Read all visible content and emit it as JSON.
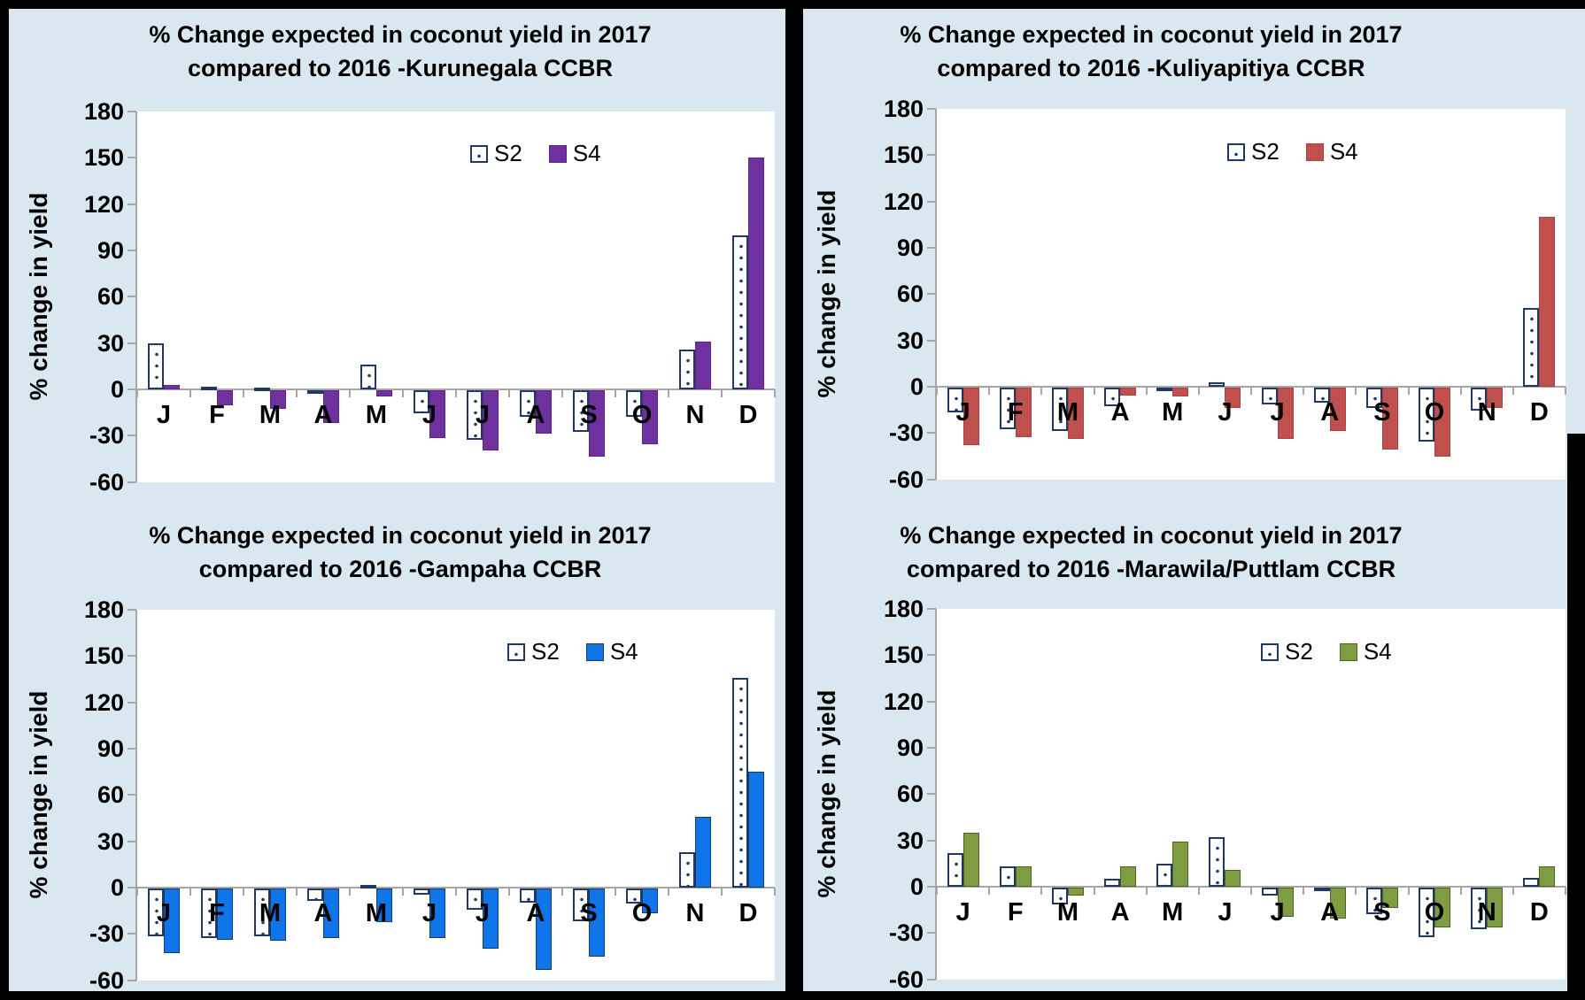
{
  "page": {
    "background": "#000000",
    "panel_color": "#D9E8F0",
    "plot_color": "#FFFFFF",
    "axis_color": "#A6A6A6",
    "text_color": "#000000",
    "s2_pattern": "white-with-navy-dots",
    "s2_border_color": "#1F3864"
  },
  "chart_data": [
    {
      "type": "bar",
      "title": "% Change expected in coconut yield in 2017 compared to 2016 -Kurunegala CCBR",
      "title_lines": [
        "% Change expected in coconut yield in 2017",
        "compared to 2016 -Kurunegala CCBR"
      ],
      "ylabel": "% change in yield",
      "xlabel": "",
      "categories": [
        "J",
        "F",
        "M",
        "A",
        "M",
        "J",
        "J",
        "A",
        "S",
        "O",
        "N",
        "D"
      ],
      "series": [
        {
          "name": "S2",
          "fill": "dotted-white",
          "border": "#1F3864",
          "values": [
            30,
            2,
            1,
            -1,
            16,
            -15,
            -32,
            -17,
            -27,
            -17,
            26,
            100
          ]
        },
        {
          "name": "S4",
          "fill": "#7030A0",
          "border": "#5C2786",
          "values": [
            3,
            -10,
            -12,
            -21,
            -4,
            -31,
            -39,
            -28,
            -43,
            -35,
            31,
            150
          ]
        }
      ],
      "ylim": [
        -60,
        180
      ],
      "yticks": [
        180,
        150,
        120,
        90,
        60,
        30,
        0,
        -30,
        -60
      ],
      "grid": false,
      "legend_position": "inside-top"
    },
    {
      "type": "bar",
      "title": "% Change expected in coconut yield in 2017 compared to 2016 -Kuliyapitiya CCBR",
      "title_lines": [
        "% Change expected in coconut yield in 2017",
        "compared to 2016 -Kuliyapitiya CCBR"
      ],
      "ylabel": "% change in yield",
      "xlabel": "",
      "categories": [
        "J",
        "F",
        "M",
        "A",
        "M",
        "J",
        "J",
        "A",
        "S",
        "O",
        "N",
        "D"
      ],
      "series": [
        {
          "name": "S2",
          "fill": "dotted-white",
          "border": "#1F3864",
          "values": [
            -16,
            -27,
            -28,
            -12,
            -2,
            3,
            -11,
            -10,
            -13,
            -35,
            -15,
            51
          ]
        },
        {
          "name": "S4",
          "fill": "#C0504D",
          "border": "#A94442",
          "values": [
            -37,
            -32,
            -33,
            -5,
            -6,
            -13,
            -33,
            -28,
            -40,
            -45,
            -13,
            110
          ]
        }
      ],
      "ylim": [
        -60,
        180
      ],
      "yticks": [
        180,
        150,
        120,
        90,
        60,
        30,
        0,
        -30,
        -60
      ],
      "grid": false,
      "legend_position": "inside-top"
    },
    {
      "type": "bar",
      "title": "% Change expected in coconut yield in 2017 compared to 2016 -Gampaha CCBR",
      "title_lines": [
        "% Change expected in coconut yield in 2017",
        "compared to 2016 -Gampaha CCBR"
      ],
      "ylabel": "% change in yield",
      "xlabel": "",
      "categories": [
        "J",
        "F",
        "M",
        "A",
        "M",
        "J",
        "J",
        "A",
        "S",
        "O",
        "N",
        "D"
      ],
      "series": [
        {
          "name": "S2",
          "fill": "dotted-white",
          "border": "#1F3864",
          "values": [
            -31,
            -32,
            -31,
            -8,
            2,
            -4,
            -14,
            -9,
            -21,
            -10,
            23,
            136
          ]
        },
        {
          "name": "S4",
          "fill": "#0E76E8",
          "border": "#1F3864",
          "values": [
            -42,
            -33,
            -34,
            -32,
            -22,
            -32,
            -39,
            -53,
            -44,
            -16,
            46,
            75
          ]
        }
      ],
      "ylim": [
        -60,
        180
      ],
      "yticks": [
        180,
        150,
        120,
        90,
        60,
        30,
        0,
        -30,
        -60
      ],
      "grid": false,
      "legend_position": "inside-top"
    },
    {
      "type": "bar",
      "title": "% Change expected in coconut yield in 2017 compared to 2016 -Marawila/Puttlam CCBR",
      "title_lines": [
        "% Change expected in coconut yield in 2017",
        "compared to 2016 -Marawila/Puttlam CCBR"
      ],
      "ylabel": "% change in yield",
      "xlabel": "",
      "categories": [
        "J",
        "F",
        "M",
        "A",
        "M",
        "J",
        "J",
        "A",
        "S",
        "O",
        "N",
        "D"
      ],
      "series": [
        {
          "name": "S2",
          "fill": "dotted-white",
          "border": "#1F3864",
          "values": [
            22,
            13,
            -11,
            5,
            15,
            32,
            -5,
            -1,
            -17,
            -32,
            -27,
            6
          ]
        },
        {
          "name": "S4",
          "fill": "#7E9C42",
          "border": "#4F6228",
          "values": [
            35,
            13,
            -5,
            13,
            29,
            11,
            -19,
            -20,
            -13,
            -26,
            -26,
            13
          ]
        }
      ],
      "ylim": [
        -60,
        180
      ],
      "yticks": [
        180,
        150,
        120,
        90,
        60,
        30,
        0,
        -30,
        -60
      ],
      "grid": false,
      "legend_position": "inside-top"
    }
  ]
}
